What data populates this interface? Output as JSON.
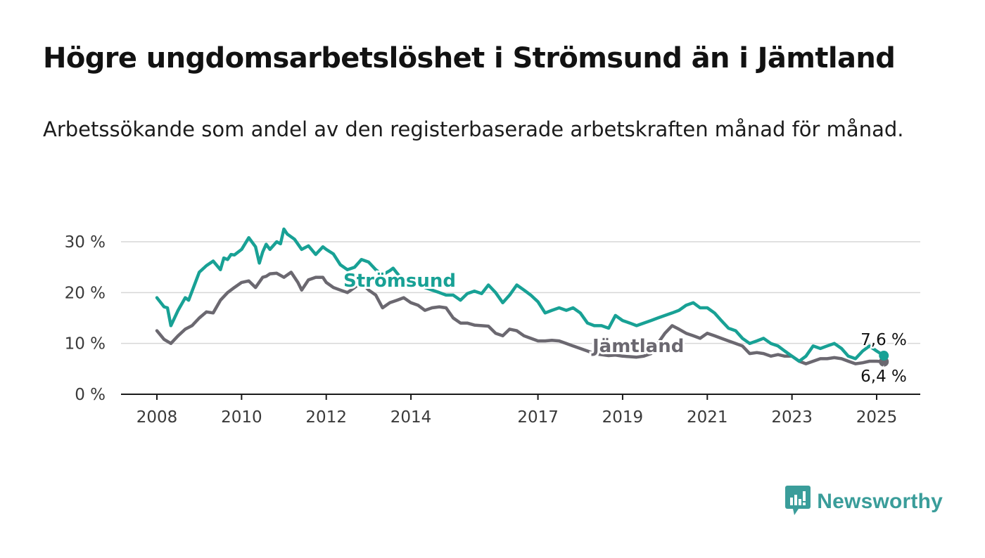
{
  "title": "Högre ungdomsarbetslöshet i Strömsund än i Jämtland",
  "subtitle": "Arbetssökande som andel av den registerbaserade arbetskraften månad för månad.",
  "logo_text": "Newsworthy",
  "colors": {
    "stromsund": "#18a195",
    "jamtland": "#6b6870",
    "grid": "#d6d6d6",
    "axis": "#1a1a1a"
  },
  "chart_data": {
    "type": "line",
    "ylim": [
      0,
      30
    ],
    "xlim": [
      2007.9,
      2025.35
    ],
    "y_ticks": [
      0,
      10,
      20,
      30
    ],
    "y_tick_labels": [
      "0 %",
      "10 %",
      "20 %",
      "30 %"
    ],
    "x_ticks": [
      2008,
      2010,
      2012,
      2014,
      2017,
      2019,
      2021,
      2023,
      2025
    ],
    "x_tick_labels": [
      "2008",
      "2010",
      "2012",
      "2014",
      "2017",
      "2019",
      "2021",
      "2023",
      "2025"
    ],
    "grid": true,
    "series": [
      {
        "name": "Strömsund",
        "end_label": "7,6 %",
        "x": [
          2008.0,
          2008.17,
          2008.25,
          2008.33,
          2008.5,
          2008.67,
          2008.75,
          2009.0,
          2009.17,
          2009.33,
          2009.5,
          2009.58,
          2009.67,
          2009.75,
          2009.83,
          2010.0,
          2010.17,
          2010.33,
          2010.42,
          2010.5,
          2010.58,
          2010.67,
          2010.83,
          2010.92,
          2011.0,
          2011.08,
          2011.25,
          2011.42,
          2011.58,
          2011.75,
          2011.92,
          2012.0,
          2012.17,
          2012.33,
          2012.5,
          2012.67,
          2012.83,
          2013.0,
          2013.17,
          2013.33,
          2013.5,
          2013.58,
          2013.75,
          2013.92,
          2014.0,
          2014.17,
          2014.33,
          2014.5,
          2014.67,
          2014.83,
          2015.0,
          2015.17,
          2015.33,
          2015.5,
          2015.67,
          2015.83,
          2016.0,
          2016.17,
          2016.33,
          2016.5,
          2016.67,
          2016.83,
          2017.0,
          2017.17,
          2017.33,
          2017.5,
          2017.67,
          2017.83,
          2018.0,
          2018.17,
          2018.33,
          2018.5,
          2018.67,
          2018.83,
          2019.0,
          2019.17,
          2019.33,
          2019.5,
          2019.67,
          2019.83,
          2020.0,
          2020.17,
          2020.33,
          2020.5,
          2020.67,
          2020.83,
          2021.0,
          2021.17,
          2021.33,
          2021.5,
          2021.67,
          2021.83,
          2022.0,
          2022.17,
          2022.33,
          2022.5,
          2022.67,
          2022.83,
          2023.0,
          2023.17,
          2023.33,
          2023.5,
          2023.67,
          2023.83,
          2024.0,
          2024.17,
          2024.33,
          2024.5,
          2024.67,
          2024.83,
          2025.0,
          2025.17
        ],
        "y": [
          19.0,
          17.2,
          17.0,
          13.5,
          16.5,
          19.0,
          18.5,
          24.0,
          25.3,
          26.2,
          24.5,
          26.8,
          26.5,
          27.5,
          27.4,
          28.5,
          30.8,
          29.0,
          25.8,
          28.0,
          29.5,
          28.5,
          30.0,
          29.6,
          32.5,
          31.5,
          30.5,
          28.5,
          29.2,
          27.5,
          29.0,
          28.5,
          27.6,
          25.5,
          24.5,
          25.0,
          26.5,
          26.0,
          24.5,
          23.5,
          24.3,
          24.8,
          23.0,
          22.5,
          22.0,
          21.5,
          21.0,
          20.5,
          20.0,
          19.5,
          19.5,
          18.5,
          19.8,
          20.3,
          19.8,
          21.5,
          20.0,
          18.0,
          19.5,
          21.5,
          20.5,
          19.5,
          18.2,
          16.0,
          16.5,
          17.0,
          16.5,
          17.0,
          16.0,
          14.0,
          13.5,
          13.5,
          13.0,
          15.5,
          14.5,
          14.0,
          13.5,
          14.0,
          14.5,
          15.0,
          15.5,
          16.0,
          16.5,
          17.5,
          18.0,
          17.0,
          17.0,
          16.0,
          14.5,
          13.0,
          12.5,
          11.0,
          10.0,
          10.5,
          11.0,
          10.0,
          9.5,
          8.5,
          7.5,
          6.5,
          7.5,
          9.5,
          9.0,
          9.5,
          10.0,
          9.0,
          7.5,
          7.0,
          8.5,
          9.5,
          8.5,
          7.6
        ]
      },
      {
        "name": "Jämtland",
        "end_label": "6,4 %",
        "x": [
          2008.0,
          2008.17,
          2008.33,
          2008.5,
          2008.67,
          2008.83,
          2009.0,
          2009.17,
          2009.33,
          2009.5,
          2009.67,
          2009.83,
          2010.0,
          2010.17,
          2010.33,
          2010.5,
          2010.58,
          2010.67,
          2010.83,
          2011.0,
          2011.17,
          2011.33,
          2011.42,
          2011.58,
          2011.75,
          2011.92,
          2012.0,
          2012.17,
          2012.33,
          2012.5,
          2012.67,
          2012.83,
          2013.0,
          2013.17,
          2013.33,
          2013.5,
          2013.67,
          2013.83,
          2014.0,
          2014.17,
          2014.33,
          2014.5,
          2014.67,
          2014.83,
          2015.0,
          2015.17,
          2015.33,
          2015.5,
          2015.67,
          2015.83,
          2016.0,
          2016.17,
          2016.33,
          2016.5,
          2016.67,
          2016.83,
          2017.0,
          2017.17,
          2017.33,
          2017.5,
          2017.67,
          2017.83,
          2018.0,
          2018.17,
          2018.33,
          2018.5,
          2018.67,
          2018.83,
          2019.0,
          2019.17,
          2019.33,
          2019.5,
          2019.67,
          2019.83,
          2020.0,
          2020.17,
          2020.33,
          2020.5,
          2020.67,
          2020.83,
          2021.0,
          2021.17,
          2021.33,
          2021.5,
          2021.67,
          2021.83,
          2022.0,
          2022.17,
          2022.33,
          2022.5,
          2022.67,
          2022.83,
          2023.0,
          2023.17,
          2023.33,
          2023.5,
          2023.67,
          2023.83,
          2024.0,
          2024.17,
          2024.33,
          2024.5,
          2024.67,
          2024.83,
          2025.0,
          2025.17
        ],
        "y": [
          12.5,
          10.8,
          10.0,
          11.5,
          12.8,
          13.5,
          15.0,
          16.2,
          16.0,
          18.5,
          20.0,
          21.0,
          22.0,
          22.3,
          21.0,
          23.0,
          23.2,
          23.7,
          23.8,
          23.0,
          24.0,
          22.0,
          20.5,
          22.5,
          23.0,
          23.0,
          22.0,
          21.0,
          20.5,
          20.0,
          21.0,
          22.0,
          20.5,
          19.5,
          17.0,
          18.0,
          18.5,
          19.0,
          18.0,
          17.5,
          16.5,
          17.0,
          17.2,
          17.0,
          15.0,
          14.0,
          14.0,
          13.6,
          13.5,
          13.4,
          12.0,
          11.5,
          12.8,
          12.5,
          11.5,
          11.0,
          10.5,
          10.5,
          10.6,
          10.5,
          10.0,
          9.5,
          9.0,
          8.5,
          8.0,
          7.8,
          7.6,
          7.7,
          7.5,
          7.4,
          7.3,
          7.5,
          8.0,
          10.0,
          12.0,
          13.5,
          12.8,
          12.0,
          11.5,
          11.0,
          12.0,
          11.5,
          11.0,
          10.5,
          10.0,
          9.5,
          8.0,
          8.2,
          8.0,
          7.5,
          7.8,
          7.5,
          7.5,
          6.5,
          6.0,
          6.5,
          7.0,
          7.0,
          7.2,
          7.0,
          6.5,
          6.0,
          6.2,
          6.5,
          6.5,
          6.4
        ]
      }
    ]
  }
}
